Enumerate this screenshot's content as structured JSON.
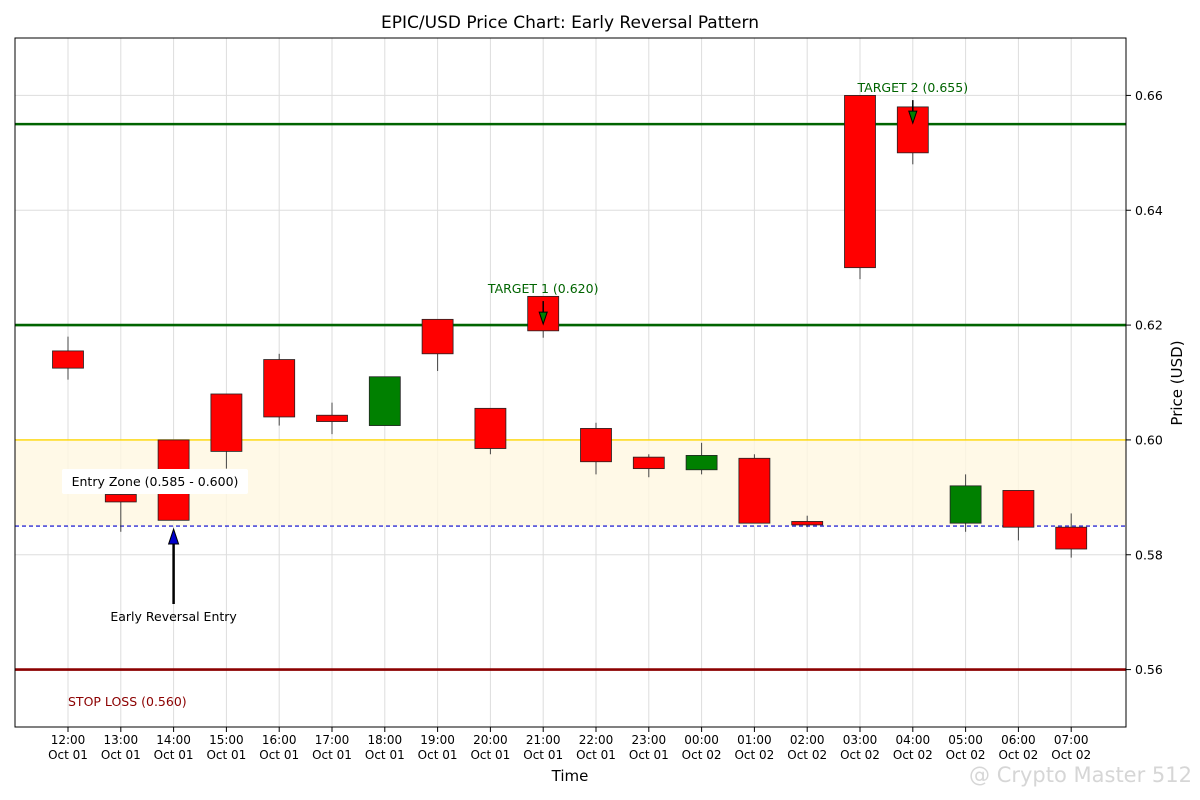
{
  "chart_data": {
    "type": "candlestick",
    "title": "EPIC/USD Price Chart: Early Reversal Pattern",
    "xlabel": "Time",
    "ylabel": "Price (USD)",
    "ylim": [
      0.55,
      0.67
    ],
    "yticks": [
      "0.56",
      "0.58",
      "0.60",
      "0.62",
      "0.64",
      "0.66"
    ],
    "grid": true,
    "colors": {
      "up": "#008000",
      "down": "#ff0000",
      "target": "#006400",
      "entry": "#ffd700",
      "entry_fill": "#fff8e1",
      "stop": "#8b0000",
      "trigger": "#0000cc"
    },
    "categories": [
      {
        "time": "12:00",
        "date": "Oct 01"
      },
      {
        "time": "13:00",
        "date": "Oct 01"
      },
      {
        "time": "14:00",
        "date": "Oct 01"
      },
      {
        "time": "15:00",
        "date": "Oct 01"
      },
      {
        "time": "16:00",
        "date": "Oct 01"
      },
      {
        "time": "17:00",
        "date": "Oct 01"
      },
      {
        "time": "18:00",
        "date": "Oct 01"
      },
      {
        "time": "19:00",
        "date": "Oct 01"
      },
      {
        "time": "20:00",
        "date": "Oct 01"
      },
      {
        "time": "21:00",
        "date": "Oct 01"
      },
      {
        "time": "22:00",
        "date": "Oct 01"
      },
      {
        "time": "23:00",
        "date": "Oct 01"
      },
      {
        "time": "00:00",
        "date": "Oct 02"
      },
      {
        "time": "01:00",
        "date": "Oct 02"
      },
      {
        "time": "02:00",
        "date": "Oct 02"
      },
      {
        "time": "03:00",
        "date": "Oct 02"
      },
      {
        "time": "04:00",
        "date": "Oct 02"
      },
      {
        "time": "05:00",
        "date": "Oct 02"
      },
      {
        "time": "06:00",
        "date": "Oct 02"
      },
      {
        "time": "07:00",
        "date": "Oct 02"
      }
    ],
    "candles": [
      {
        "open": 0.6155,
        "close": 0.6125,
        "high": 0.618,
        "low": 0.6105
      },
      {
        "open": 0.5905,
        "close": 0.5892,
        "high": 0.5915,
        "low": 0.584
      },
      {
        "open": 0.6,
        "close": 0.586,
        "high": 0.6,
        "low": 0.586
      },
      {
        "open": 0.608,
        "close": 0.598,
        "high": 0.608,
        "low": 0.595
      },
      {
        "open": 0.614,
        "close": 0.604,
        "high": 0.615,
        "low": 0.6025
      },
      {
        "open": 0.6043,
        "close": 0.6032,
        "high": 0.6065,
        "low": 0.601
      },
      {
        "open": 0.6025,
        "close": 0.611,
        "high": 0.611,
        "low": 0.6025
      },
      {
        "open": 0.621,
        "close": 0.615,
        "high": 0.621,
        "low": 0.612
      },
      {
        "open": 0.6055,
        "close": 0.5985,
        "high": 0.6055,
        "low": 0.5975
      },
      {
        "open": 0.625,
        "close": 0.619,
        "high": 0.625,
        "low": 0.6178
      },
      {
        "open": 0.602,
        "close": 0.5962,
        "high": 0.603,
        "low": 0.594
      },
      {
        "open": 0.597,
        "close": 0.595,
        "high": 0.5975,
        "low": 0.5935
      },
      {
        "open": 0.5948,
        "close": 0.5973,
        "high": 0.5995,
        "low": 0.594
      },
      {
        "open": 0.5968,
        "close": 0.5855,
        "high": 0.5975,
        "low": 0.5855
      },
      {
        "open": 0.5858,
        "close": 0.5852,
        "high": 0.5868,
        "low": 0.5848
      },
      {
        "open": 0.66,
        "close": 0.63,
        "high": 0.66,
        "low": 0.628
      },
      {
        "open": 0.658,
        "close": 0.65,
        "high": 0.658,
        "low": 0.648
      },
      {
        "open": 0.5855,
        "close": 0.592,
        "high": 0.594,
        "low": 0.584
      },
      {
        "open": 0.5912,
        "close": 0.5848,
        "high": 0.5912,
        "low": 0.5825
      },
      {
        "open": 0.5848,
        "close": 0.581,
        "high": 0.5872,
        "low": 0.5795
      }
    ],
    "levels": [
      {
        "name": "target2",
        "value": 0.655,
        "style": "solid",
        "color": "#006400"
      },
      {
        "name": "target1",
        "value": 0.62,
        "style": "solid",
        "color": "#006400"
      },
      {
        "name": "entry-top",
        "value": 0.6,
        "style": "solid",
        "color": "#ffd700"
      },
      {
        "name": "entry-trigger",
        "value": 0.585,
        "style": "dashed",
        "color": "#0000cc"
      },
      {
        "name": "stop-loss",
        "value": 0.56,
        "style": "solid",
        "color": "#8b0000"
      }
    ],
    "entry_zone": {
      "low": 0.585,
      "high": 0.6,
      "label": "Entry Zone (0.585 - 0.600)"
    },
    "annotations": {
      "target1": {
        "label": "TARGET 1 (0.620)",
        "index": 9,
        "value": 0.62
      },
      "target2": {
        "label": "TARGET 2 (0.655)",
        "index": 16,
        "value": 0.655
      },
      "stop": {
        "label": "STOP LOSS (0.560)"
      },
      "entry": {
        "label": "Early Reversal Entry",
        "index": 2,
        "value": 0.585
      }
    }
  },
  "watermark": "@ Crypto Master 512"
}
